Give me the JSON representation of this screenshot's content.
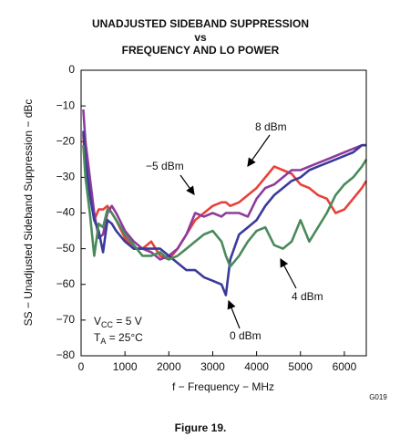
{
  "chart_data": {
    "type": "line",
    "title": [
      "UNADJUSTED SIDEBAND SUPPRESSION",
      "vs",
      "FREQUENCY AND LO POWER"
    ],
    "x_label": "f − Frequency − MHz",
    "y_label": "SS − Unadjusted Sideband Suppression − dBc",
    "figure_code": "G019",
    "caption": "Figure 19.",
    "annotations": [
      {
        "parts": [
          "V",
          "CC",
          " = 5 V"
        ]
      },
      {
        "parts": [
          "T",
          "A",
          " = 25°C"
        ]
      }
    ],
    "xlim": [
      0,
      6500
    ],
    "ylim": [
      -80,
      0
    ],
    "xticks": [
      0,
      1000,
      2000,
      3000,
      4000,
      5000,
      6000
    ],
    "yticks": [
      0,
      {
        "value": -10,
        "label": "−10"
      },
      {
        "value": -20,
        "label": "−20"
      },
      {
        "value": -30,
        "label": "−30"
      },
      {
        "value": -40,
        "label": "−40"
      },
      {
        "value": -50,
        "label": "−50"
      },
      {
        "value": -60,
        "label": "−60"
      },
      {
        "value": -70,
        "label": "−70"
      },
      {
        "value": -80,
        "label": "−80"
      }
    ],
    "x": [
      50,
      100,
      200,
      300,
      400,
      500,
      600,
      700,
      800,
      1000,
      1200,
      1400,
      1600,
      1800,
      2000,
      2200,
      2400,
      2600,
      2800,
      3000,
      3200,
      3300,
      3400,
      3600,
      3800,
      4000,
      4200,
      4400,
      4600,
      4800,
      5000,
      5200,
      5400,
      5600,
      5800,
      6000,
      6200,
      6400,
      6500
    ],
    "series": [
      {
        "name": "8 dBm",
        "color": "#e8413a",
        "values": [
          -18,
          -28,
          -33,
          -42,
          -39,
          -39,
          -38,
          -40,
          -42,
          -47,
          -50,
          -50,
          -48,
          -52,
          -53,
          -50,
          -46,
          -42,
          -40,
          -38,
          -37,
          -37,
          -38,
          -37,
          -35,
          -33,
          -30,
          -27,
          -28,
          -29,
          -32,
          -33,
          -35,
          -36,
          -40,
          -39,
          -36,
          -33,
          -31
        ]
      },
      {
        "name": "−5 dBm",
        "color": "#8e3a9e",
        "values": [
          -11,
          -20,
          -30,
          -40,
          -47,
          -46,
          -40,
          -38,
          -40,
          -45,
          -48,
          -50,
          -51,
          -53,
          -52,
          -50,
          -46,
          -40,
          -41,
          -40,
          -41,
          -40,
          -40,
          -40,
          -41,
          -36,
          -33,
          -32,
          -30,
          -28,
          -28,
          -27,
          -26,
          -25,
          -24,
          -23,
          -22,
          -21,
          -21
        ]
      },
      {
        "name": "0 dBm",
        "color": "#3a3a9a",
        "values": [
          -17,
          -25,
          -35,
          -42,
          -45,
          -51,
          -42,
          -43,
          -45,
          -48,
          -50,
          -50,
          -50,
          -50,
          -52,
          -54,
          -56,
          -56,
          -58,
          -59,
          -60,
          -63,
          -53,
          -46,
          -44,
          -42,
          -38,
          -35,
          -33,
          -31,
          -30,
          -28,
          -27,
          -26,
          -25,
          -24,
          -23,
          -21,
          -21
        ]
      },
      {
        "name": "4 dBm",
        "color": "#4a8a5a",
        "values": [
          -21,
          -30,
          -40,
          -52,
          -43,
          -44,
          -39,
          -40,
          -42,
          -46,
          -49,
          -52,
          -52,
          -51,
          -53,
          -52,
          -50,
          -48,
          -46,
          -45,
          -48,
          -52,
          -55,
          -52,
          -48,
          -45,
          -44,
          -49,
          -50,
          -48,
          -42,
          -48,
          -44,
          -40,
          -35,
          -32,
          -30,
          -27,
          -25
        ]
      }
    ]
  }
}
